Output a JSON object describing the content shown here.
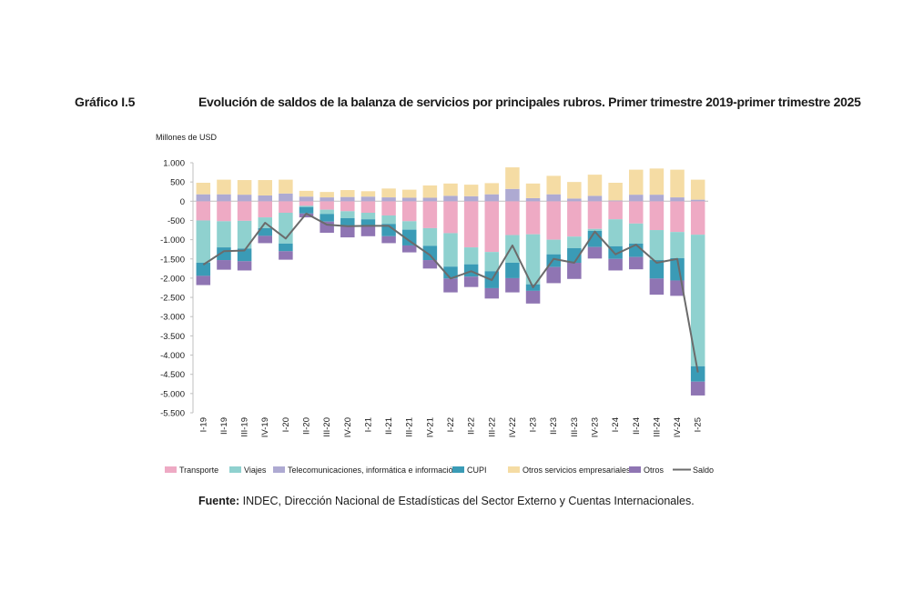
{
  "header": {
    "figure_label": "Gráfico I.5",
    "title": "Evolución de saldos de la balanza de servicios por principales rubros. Primer trimestre 2019-primer trimestre 2025"
  },
  "source": {
    "label": "Fuente:",
    "text": " INDEC, Dirección Nacional de Estadísticas del Sector Externo y Cuentas Internacionales."
  },
  "chart_data": {
    "type": "bar",
    "stacked": true,
    "unit_label": "Millones de USD",
    "ylim": [
      -5500,
      1000
    ],
    "yticks": [
      1000,
      500,
      0,
      -500,
      -1000,
      -1500,
      -2000,
      -2500,
      -3000,
      -3500,
      -4000,
      -4500,
      -5000,
      -5500
    ],
    "ytick_labels": [
      "1.000",
      "500",
      "0",
      "-500",
      "-1.000",
      "-1.500",
      "-2.000",
      "-2.500",
      "-3.000",
      "-3.500",
      "-4.000",
      "-4.500",
      "-5.000",
      "-5.500"
    ],
    "grid": false,
    "legend_position": "bottom",
    "categories": [
      "I-19",
      "II-19",
      "III-19",
      "IV-19",
      "I-20",
      "II-20",
      "III-20",
      "IV-20",
      "I-21",
      "II-21",
      "III-21",
      "IV-21",
      "I-22",
      "II-22",
      "III-22",
      "IV-22",
      "I-23",
      "II-23",
      "III-23",
      "IV-23",
      "I-24",
      "II-24",
      "III-24",
      "IV-24",
      "I-25"
    ],
    "series": [
      {
        "name": "Transporte",
        "color": "#eeaac4",
        "kind": "bar",
        "values": [
          -500,
          -520,
          -510,
          -420,
          -300,
          -120,
          -220,
          -260,
          -300,
          -370,
          -520,
          -700,
          -830,
          -1200,
          -1320,
          -880,
          -860,
          -1000,
          -920,
          -720,
          -470,
          -580,
          -750,
          -800,
          -870
        ]
      },
      {
        "name": "Viajes",
        "color": "#8fd1cf",
        "kind": "bar",
        "values": [
          -1100,
          -680,
          -720,
          -280,
          -800,
          -30,
          -110,
          -180,
          -170,
          -220,
          -220,
          -460,
          -870,
          -440,
          -500,
          -720,
          -1300,
          -380,
          -300,
          -50,
          -700,
          -520,
          -780,
          -680,
          -3420
        ]
      },
      {
        "name": "Telecomunicaciones,  informática e información",
        "color": "#aeaad2",
        "kind": "bar",
        "values": [
          180,
          180,
          170,
          150,
          200,
          120,
          100,
          110,
          120,
          100,
          90,
          90,
          140,
          130,
          180,
          320,
          80,
          180,
          70,
          140,
          20,
          170,
          170,
          100,
          40
        ]
      },
      {
        "name": "CUPI",
        "color": "#3a9bb6",
        "kind": "bar",
        "values": [
          -340,
          -330,
          -330,
          -200,
          -200,
          -170,
          -200,
          -190,
          -160,
          -320,
          -410,
          -370,
          -310,
          -320,
          -440,
          -400,
          -170,
          -330,
          -380,
          -420,
          -330,
          -350,
          -480,
          -580,
          -400
        ]
      },
      {
        "name": "Otros servicios empresariales",
        "color": "#f5dca4",
        "kind": "bar",
        "values": [
          300,
          380,
          380,
          400,
          360,
          150,
          140,
          180,
          140,
          230,
          210,
          320,
          320,
          300,
          290,
          560,
          380,
          480,
          430,
          550,
          460,
          650,
          680,
          720,
          520
        ]
      },
      {
        "name": "Otros",
        "color": "#8f75b3",
        "kind": "bar",
        "values": [
          -240,
          -250,
          -240,
          -190,
          -220,
          -100,
          -290,
          -310,
          -280,
          -180,
          -180,
          -220,
          -360,
          -270,
          -270,
          -370,
          -330,
          -420,
          -420,
          -300,
          -300,
          -320,
          -420,
          -400,
          -360
        ]
      },
      {
        "name": "Saldo",
        "color": "#6b6b6b",
        "kind": "line",
        "values": [
          -1650,
          -1300,
          -1280,
          -560,
          -970,
          -320,
          -610,
          -650,
          -640,
          -640,
          -1030,
          -1400,
          -2010,
          -1820,
          -2050,
          -1150,
          -2240,
          -1500,
          -1600,
          -790,
          -1380,
          -1130,
          -1600,
          -1500,
          -4450
        ]
      }
    ]
  }
}
